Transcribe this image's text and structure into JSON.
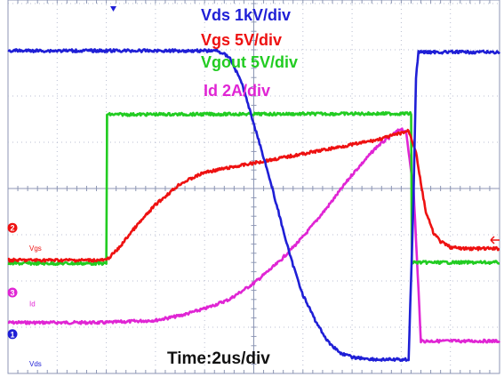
{
  "chart_data": {
    "type": "line",
    "title": "",
    "xlabel": "Time:2us/div",
    "ylabel": "",
    "grid": true,
    "grid_divisions": {
      "x": 10,
      "y": 8
    },
    "x_unit": "us",
    "x_per_div": 2,
    "x_range": [
      0,
      20
    ],
    "y_range_div": [
      -4,
      4
    ],
    "legend": [
      {
        "name": "Vds 1kV/div",
        "color": "#1f1fd6"
      },
      {
        "name": "Vgs 5V/div",
        "color": "#ee1111"
      },
      {
        "name": "Vgout 5V/div",
        "color": "#22cc22"
      },
      {
        "name": "Id 2A/div",
        "color": "#e025d4"
      }
    ],
    "channel_markers": [
      {
        "symbol": "2",
        "color": "#ee1111"
      },
      {
        "symbol": "3",
        "color": "#e025d4"
      },
      {
        "symbol": "1",
        "color": "#1f1fd6"
      }
    ],
    "trace_tags": [
      {
        "text": "Vgs",
        "color": "#ee1111"
      },
      {
        "text": "Id",
        "color": "#e025d4"
      },
      {
        "text": "Vds",
        "color": "#1f1fd6"
      }
    ],
    "series": [
      {
        "name": "Vds",
        "color": "#1f1fd6",
        "x": [
          0,
          8.5,
          9.0,
          9.5,
          10.0,
          10.5,
          11.0,
          11.5,
          12.0,
          12.5,
          13.0,
          13.5,
          14.0,
          15.0,
          16.3,
          16.5,
          16.6,
          16.7,
          20
        ],
        "y": [
          2.98,
          2.98,
          2.85,
          2.3,
          1.4,
          0.5,
          -0.5,
          -1.5,
          -2.3,
          -2.85,
          -3.3,
          -3.55,
          -3.65,
          -3.7,
          -3.7,
          -0.2,
          2.4,
          2.95,
          2.95
        ]
      },
      {
        "name": "Vgs",
        "color": "#ee1111",
        "x": [
          0,
          4.0,
          4.5,
          5.0,
          6.0,
          7.0,
          8.0,
          9.0,
          10.0,
          11.0,
          12.0,
          13.0,
          14.0,
          15.0,
          16.0,
          16.3,
          16.6,
          16.8,
          17.0,
          17.3,
          17.6,
          18.0,
          18.5,
          20
        ],
        "y": [
          -1.55,
          -1.55,
          -1.3,
          -0.95,
          -0.35,
          0.1,
          0.35,
          0.45,
          0.55,
          0.65,
          0.75,
          0.85,
          0.95,
          1.05,
          1.2,
          1.25,
          0.8,
          0.1,
          -0.5,
          -0.95,
          -1.15,
          -1.27,
          -1.3,
          -1.3
        ]
      },
      {
        "name": "Vgout",
        "color": "#22cc22",
        "x": [
          0,
          4.0,
          4.0,
          16.2,
          16.4,
          16.4,
          20
        ],
        "y": [
          -1.62,
          -1.62,
          1.6,
          1.62,
          1.62,
          -1.6,
          -1.6
        ]
      },
      {
        "name": "Id",
        "color": "#e025d4",
        "x": [
          0,
          4.0,
          6.0,
          7.0,
          8.0,
          9.0,
          10.0,
          11.0,
          12.0,
          13.0,
          14.0,
          15.0,
          16.0,
          16.2,
          16.5,
          16.8,
          17.2,
          20
        ],
        "y": [
          -2.9,
          -2.9,
          -2.85,
          -2.75,
          -2.6,
          -2.4,
          -2.05,
          -1.6,
          -1.05,
          -0.4,
          0.3,
          0.9,
          1.3,
          1.2,
          0.0,
          -3.3,
          -3.3,
          -3.3
        ]
      }
    ]
  }
}
